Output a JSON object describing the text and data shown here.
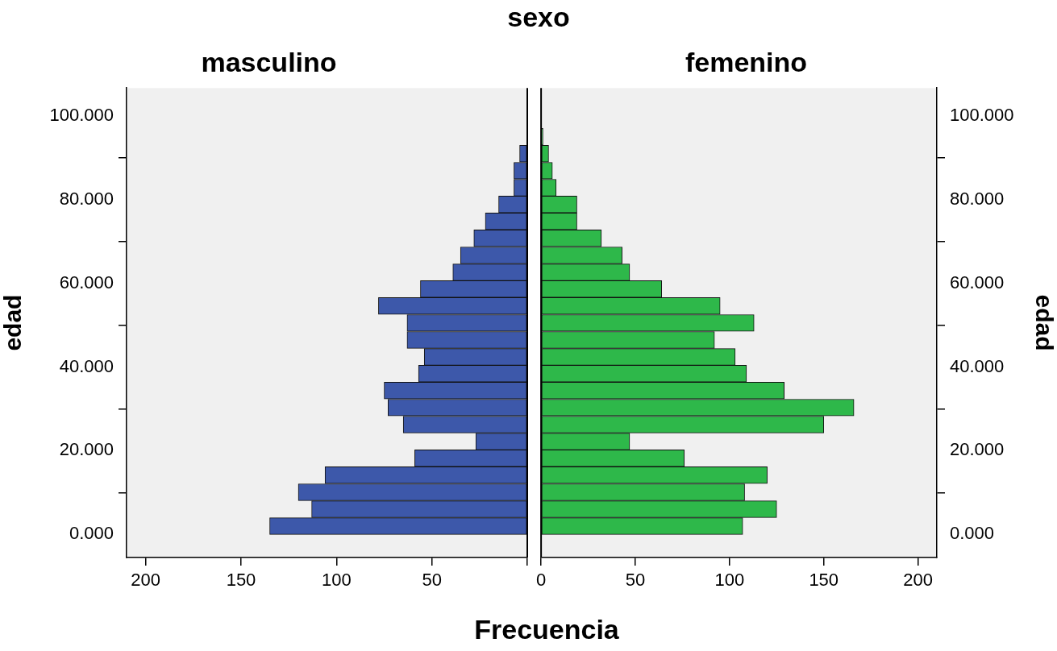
{
  "chart_data": [
    {
      "type": "histogram",
      "orientation": "horizontal",
      "title": "sexo",
      "subtitle": "masculino",
      "xlabel": "Frecuencia",
      "ylabel": "edad",
      "color": "#3d58aa",
      "bins": [
        0,
        4.0,
        8.1,
        12.1,
        16.2,
        20.2,
        24.2,
        28.3,
        32.3,
        36.4,
        40.4,
        44.4,
        48.5,
        52.5,
        56.6,
        60.6,
        64.6,
        68.7,
        72.7,
        76.8,
        80.8,
        84.8,
        88.9,
        92.9,
        97.0
      ],
      "values": [
        135,
        113,
        120,
        106,
        59,
        27,
        65,
        73,
        75,
        57,
        54,
        63,
        63,
        78,
        56,
        39,
        35,
        28,
        22,
        15,
        7,
        7,
        4,
        0
      ],
      "xlim": [
        210,
        0
      ],
      "xticks": [
        200,
        150,
        100,
        50,
        {
          "value": 0,
          "label": null
        }
      ],
      "ylim": [
        -5.5,
        106.6
      ],
      "yticks": [
        {
          "value": 0,
          "label": "0.000"
        },
        {
          "value": 20,
          "label": "20.000"
        },
        {
          "value": 40,
          "label": "40.000"
        },
        {
          "value": 60,
          "label": "60.000"
        },
        {
          "value": 80,
          "label": "80.000"
        },
        {
          "value": 100,
          "label": "100.000"
        }
      ],
      "grid": false,
      "legend": false
    },
    {
      "type": "histogram",
      "orientation": "horizontal",
      "subtitle": "femenino",
      "ylabel": "edad",
      "color": "#2eb84a",
      "bins": [
        0,
        4.0,
        8.1,
        12.1,
        16.2,
        20.2,
        24.2,
        28.3,
        32.3,
        36.4,
        40.4,
        44.4,
        48.5,
        52.5,
        56.6,
        60.6,
        64.6,
        68.7,
        72.7,
        76.8,
        80.8,
        84.8,
        88.9,
        92.9,
        97.0
      ],
      "values": [
        107,
        125,
        108,
        120,
        76,
        47,
        150,
        166,
        129,
        109,
        103,
        92,
        113,
        95,
        64,
        47,
        43,
        32,
        19,
        19,
        8,
        6,
        4,
        1
      ],
      "xlim": [
        0,
        210
      ],
      "xticks": [
        0,
        50,
        100,
        150,
        200
      ],
      "ylim": [
        -5.5,
        106.6
      ],
      "yticks": [
        {
          "value": 0,
          "label": "0.000"
        },
        {
          "value": 20,
          "label": "20.000"
        },
        {
          "value": 40,
          "label": "40.000"
        },
        {
          "value": 60,
          "label": "60.000"
        },
        {
          "value": 80,
          "label": "80.000"
        },
        {
          "value": 100,
          "label": "100.000"
        }
      ],
      "grid": false,
      "legend": false
    }
  ]
}
